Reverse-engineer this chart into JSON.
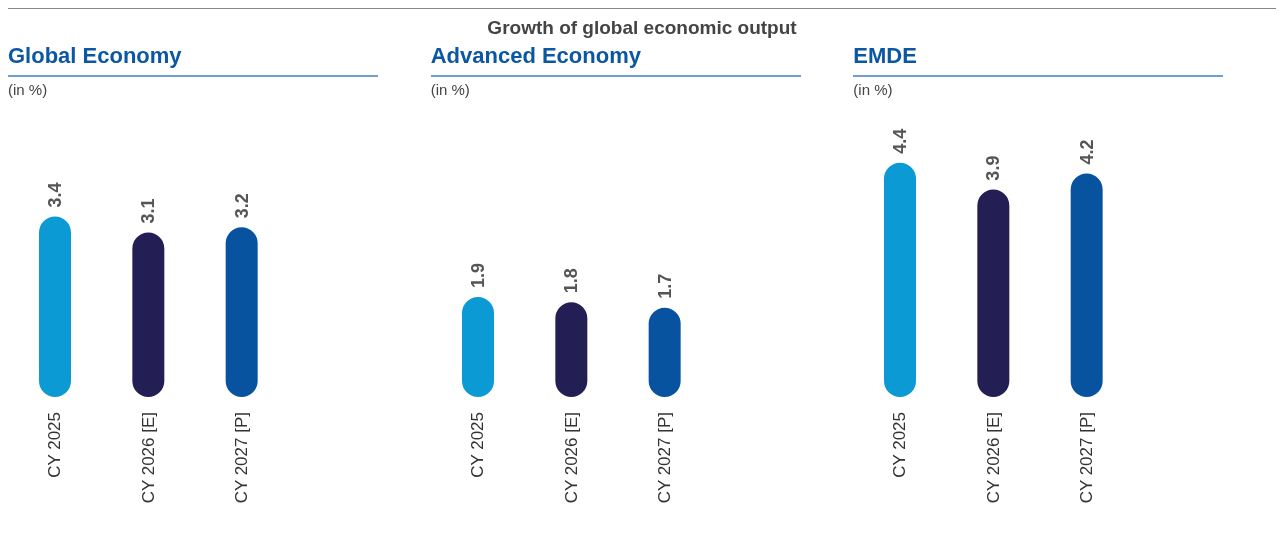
{
  "chart_data": [
    {
      "type": "bar",
      "title": "Global Economy",
      "subtitle": "(in %)",
      "annotations": [
        "Growth of global economic output"
      ],
      "categories": [
        "CY 2025",
        "CY 2026 [E]",
        "CY 2027 [P]"
      ],
      "values": [
        3.4,
        3.1,
        3.2
      ],
      "colors": [
        "#0c9ad4",
        "#231f55",
        "#0853a0"
      ],
      "tick_labels": "x",
      "data_labels": true,
      "grid": false,
      "legend": false
    },
    {
      "type": "bar",
      "title": "Advanced Economy",
      "subtitle": "(in %)",
      "categories": [
        "CY 2025",
        "CY 2026 [E]",
        "CY 2027 [P]"
      ],
      "values": [
        1.9,
        1.8,
        1.7
      ],
      "colors": [
        "#0c9ad4",
        "#231f55",
        "#0853a0"
      ],
      "tick_labels": "x",
      "data_labels": true,
      "grid": false,
      "legend": false
    },
    {
      "type": "bar",
      "title": "EMDE",
      "subtitle": "(in %)",
      "categories": [
        "CY 2025",
        "CY 2026 [E]",
        "CY 2027 [P]"
      ],
      "values": [
        4.4,
        3.9,
        4.2
      ],
      "colors": [
        "#0c9ad4",
        "#231f55",
        "#0853a0"
      ],
      "tick_labels": "x",
      "data_labels": true,
      "grid": false,
      "legend": false
    }
  ]
}
